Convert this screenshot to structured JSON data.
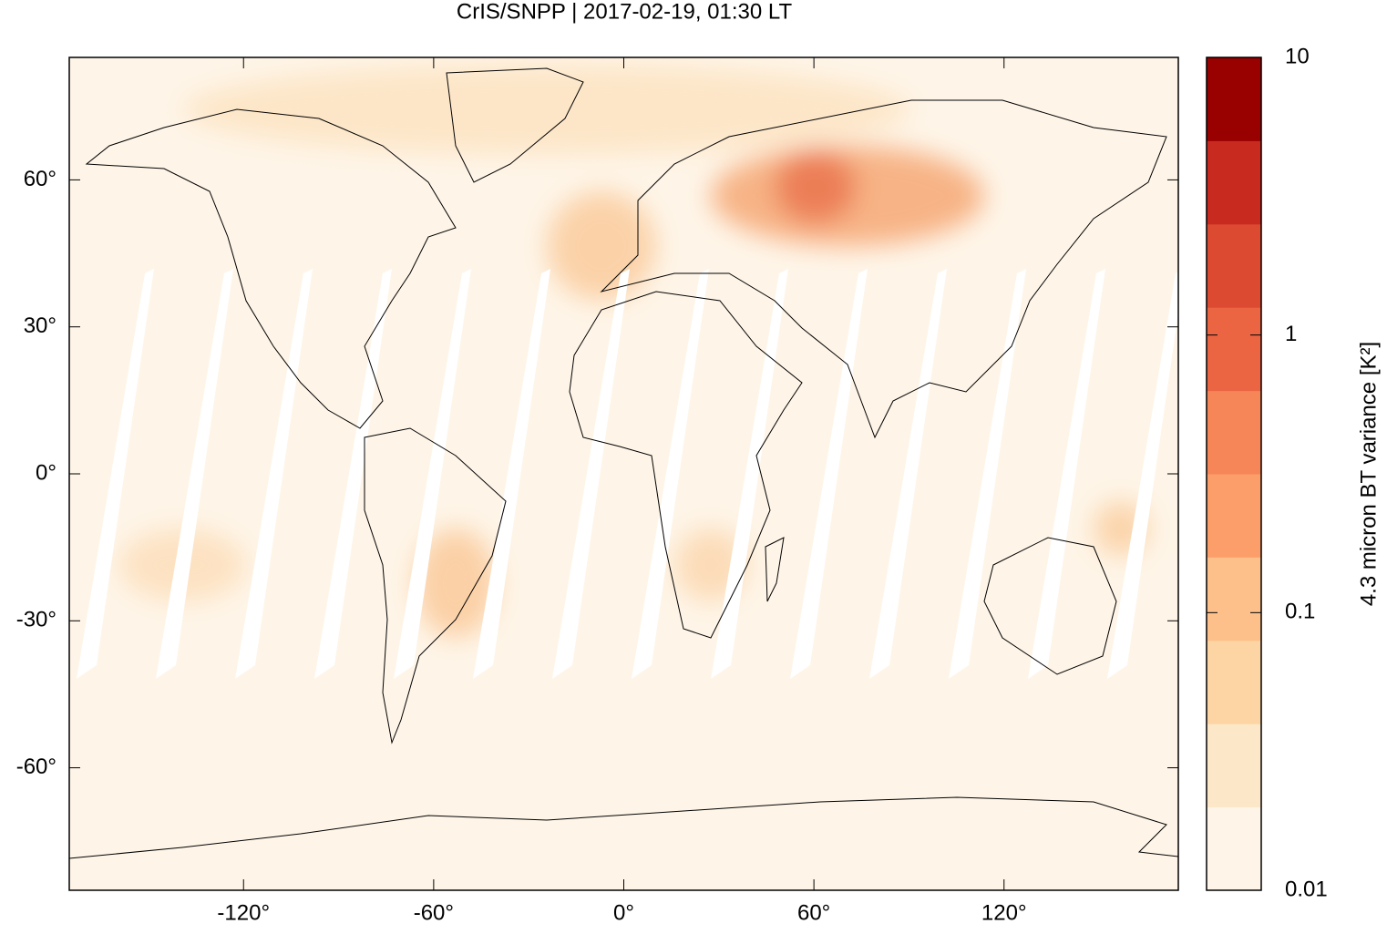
{
  "title": "CrIS/SNPP | 2017-02-19, 01:30 LT",
  "map": {
    "xlim": [
      -175,
      175
    ],
    "ylim": [
      -85,
      85
    ],
    "xticks": [
      {
        "value": -120,
        "label": "-120°"
      },
      {
        "value": -60,
        "label": "-60°"
      },
      {
        "value": 0,
        "label": "0°"
      },
      {
        "value": 60,
        "label": "60°"
      },
      {
        "value": 120,
        "label": "120°"
      }
    ],
    "yticks": [
      {
        "value": -60,
        "label": "-60°"
      },
      {
        "value": -30,
        "label": "-30°"
      },
      {
        "value": 0,
        "label": "0°"
      },
      {
        "value": 30,
        "label": "30°"
      },
      {
        "value": 60,
        "label": "60°"
      }
    ]
  },
  "colorbar": {
    "label": "4.3 micron BT variance [K²]",
    "scale": "log",
    "lim": [
      0.01,
      10
    ],
    "ticks": [
      0.01,
      0.1,
      1,
      10
    ],
    "colors": [
      "#fef5e8",
      "#fde7c9",
      "#fdd4a4",
      "#fdc08a",
      "#fc9e69",
      "#f68657",
      "#eb6543",
      "#db4a31",
      "#c92a1f",
      "#990000"
    ]
  }
}
